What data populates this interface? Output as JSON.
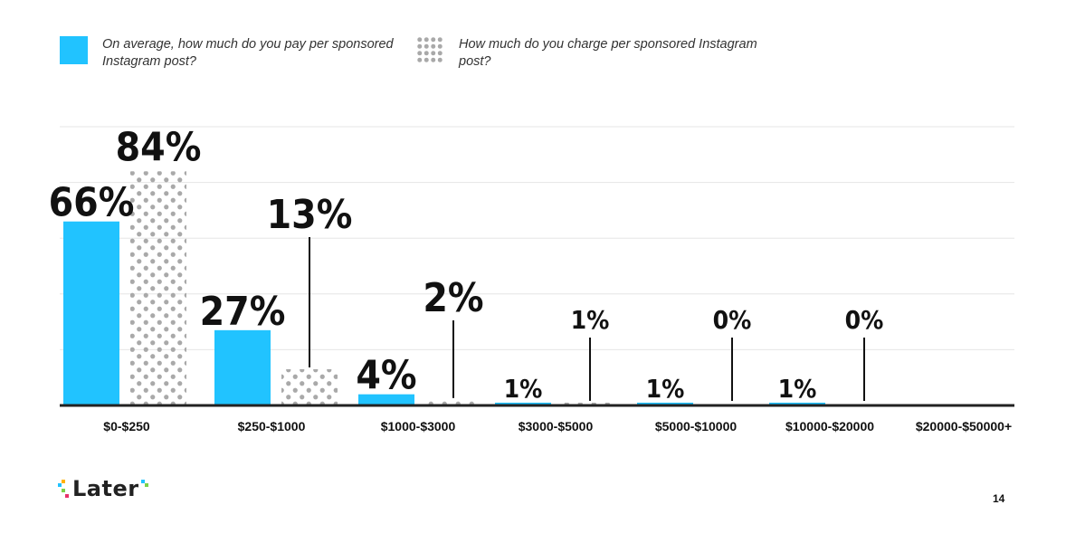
{
  "legend": {
    "series_a": "On average, how much do you pay per sponsored Instagram post?",
    "series_b": "How much do you charge per sponsored Instagram post?"
  },
  "colors": {
    "series_a": "#21c3ff",
    "series_b": "#a9a9a9",
    "axis": "#222222",
    "grid": "#e6e6e6"
  },
  "chart_data": {
    "type": "bar",
    "title": "",
    "xlabel": "",
    "ylabel": "",
    "ylim": [
      0,
      100
    ],
    "grid": true,
    "legend_position": "top-left",
    "categories": [
      "$0-$250",
      "$250-$1000",
      "$1000-$3000",
      "$3000-$5000",
      "$5000-$10000",
      "$10000-$20000",
      "$20000-$50000+"
    ],
    "series": [
      {
        "name": "On average, how much do you pay per sponsored Instagram post?",
        "values": [
          66,
          27,
          4,
          1,
          1,
          1,
          null
        ],
        "labels": [
          "66%",
          "27%",
          "4%",
          "1%",
          "1%",
          "1%",
          ""
        ]
      },
      {
        "name": "How much do you charge per sponsored Instagram post?",
        "values": [
          84,
          13,
          2,
          1,
          0,
          0,
          null
        ],
        "labels": [
          "84%",
          "13%",
          "2%",
          "1%",
          "0%",
          "0%",
          ""
        ]
      }
    ]
  },
  "footer": {
    "logo_text": "Later",
    "page_number": "14"
  }
}
